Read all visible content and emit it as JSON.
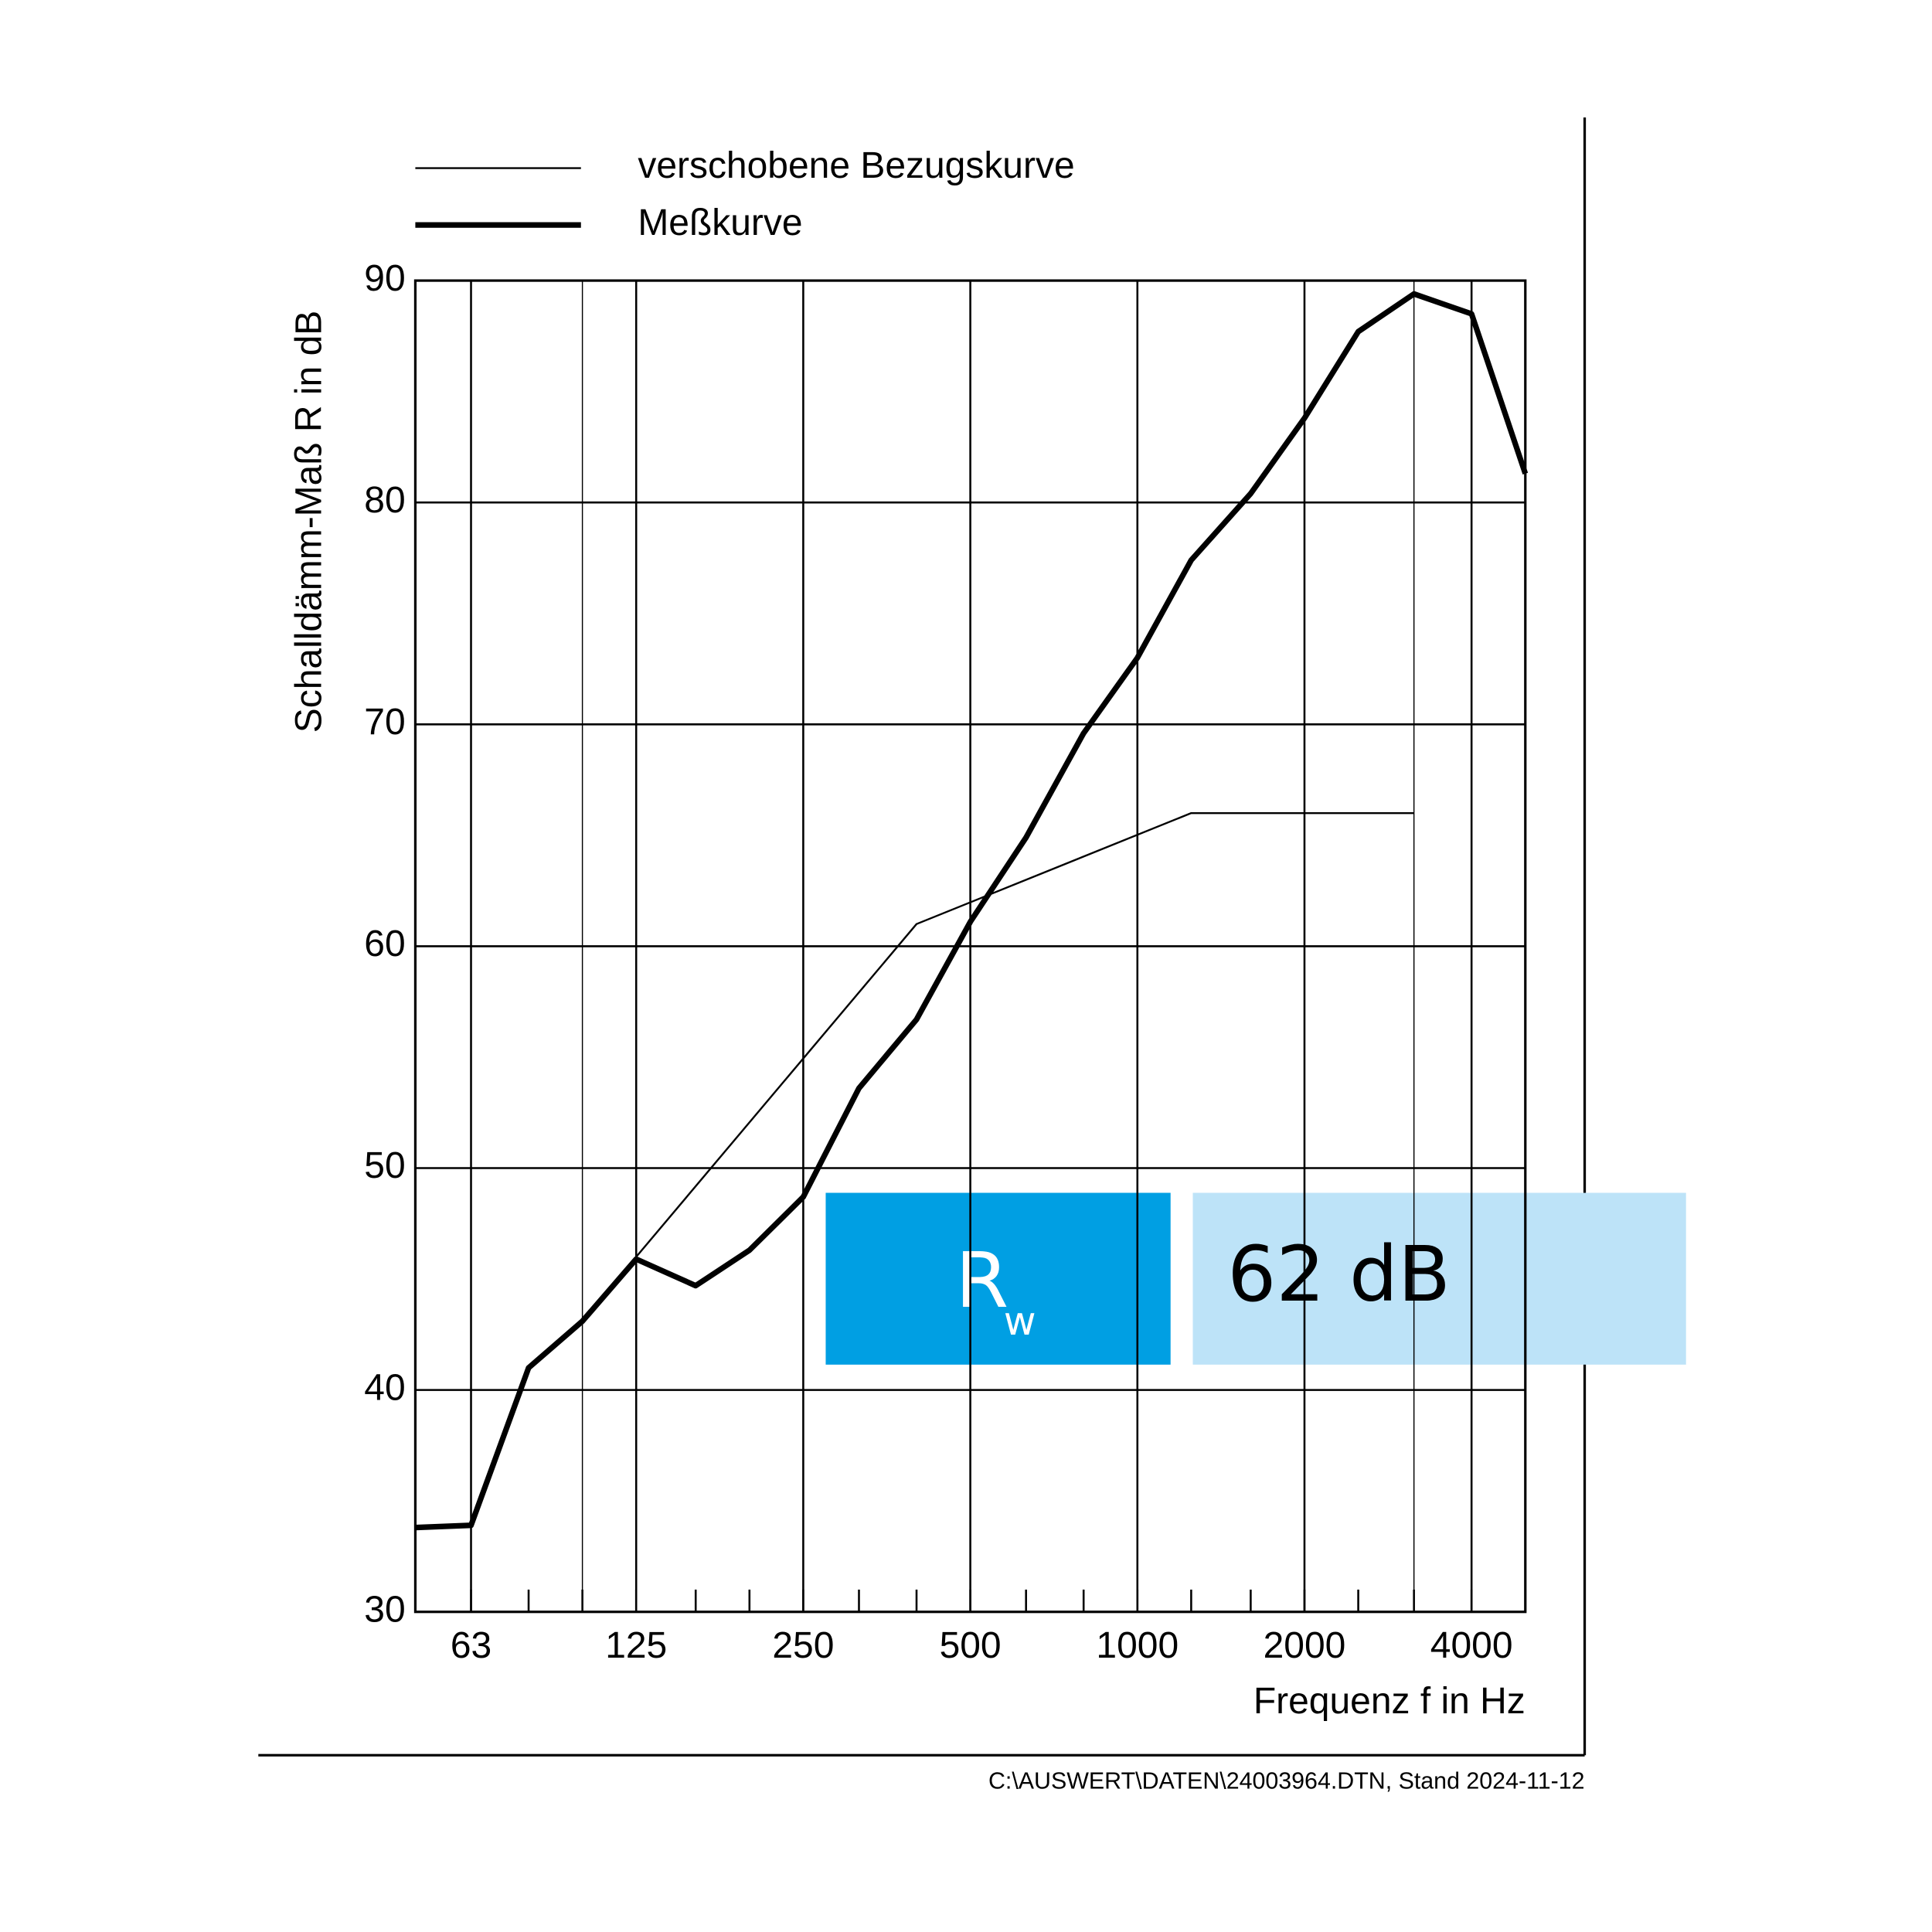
{
  "chart_data": {
    "type": "line",
    "x_label": "Frequenz f in Hz",
    "y_label": "Schalldämm-Maß R in dB",
    "xscale": "log",
    "xlim": [
      50,
      5000
    ],
    "xticks": [
      63,
      125,
      250,
      500,
      1000,
      2000,
      4000
    ],
    "ylim": [
      30,
      90
    ],
    "yticks": [
      30,
      40,
      50,
      60,
      70,
      80,
      90
    ],
    "grid": true,
    "range_lines": [
      100,
      3150
    ],
    "legend": "top",
    "series": [
      {
        "name": "verschobene Bezugskurve",
        "color": "#000000",
        "linewidth": 1.5,
        "x": [
          125,
          400,
          1250,
          3150
        ],
        "values": [
          46,
          61,
          66,
          66
        ]
      },
      {
        "name": "Meßkurve",
        "color": "#000000",
        "linewidth": 4.5,
        "x": [
          50,
          63,
          80,
          100,
          125,
          160,
          200,
          250,
          315,
          400,
          500,
          630,
          800,
          1000,
          1250,
          1600,
          2000,
          2500,
          3150,
          4000,
          5000
        ],
        "values": [
          33.8,
          33.9,
          41.0,
          43.1,
          45.9,
          44.7,
          46.3,
          48.7,
          53.6,
          56.7,
          61.1,
          64.9,
          69.6,
          73.0,
          77.4,
          80.4,
          83.8,
          87.7,
          89.4,
          88.5,
          81.3
        ]
      }
    ],
    "rating": {
      "symbol": "R",
      "subscript": "w",
      "value": "62 dB"
    },
    "footer": "C:\\AUSWERT\\DATEN\\24003964.DTN, Stand 2024-11-12"
  }
}
